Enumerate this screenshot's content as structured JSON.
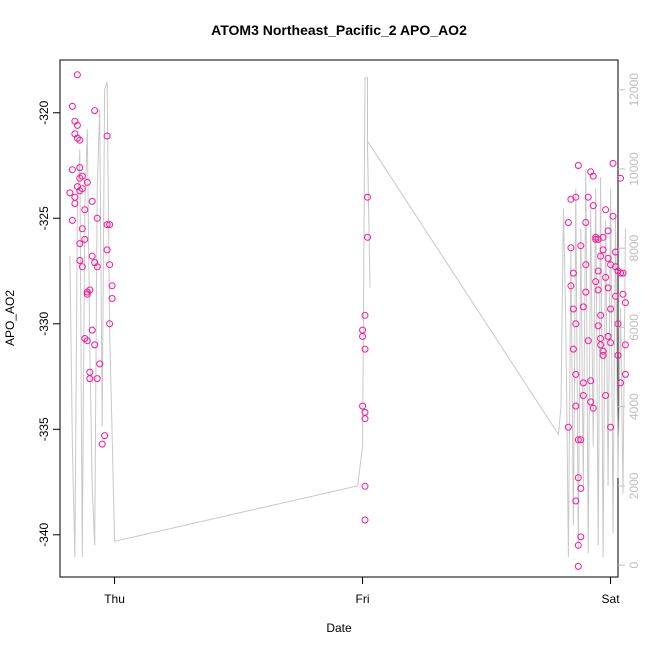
{
  "chart_data": {
    "type": "scatter",
    "title": "ATOM3 Northeast_Pacific_2 APO_AO2",
    "xlabel": "Date",
    "ylabel": "APO_AO2",
    "x_ticks": [
      "Thu",
      "Fri",
      "Sat"
    ],
    "x_tick_values": [
      1.0,
      2.0,
      3.0
    ],
    "xlim": [
      0.78,
      3.03
    ],
    "ylim": [
      -342.0,
      -317.5
    ],
    "y_ticks": [
      -340,
      -335,
      -330,
      -325,
      -320
    ],
    "y2_ticks": [
      0,
      2000,
      4000,
      6000,
      8000,
      10000,
      12000
    ],
    "y2lim": [
      -300,
      12750
    ],
    "colors": {
      "points": "#ff1493",
      "line": "#c8c8c8",
      "right_axis": "#bebebe"
    },
    "series": [
      {
        "kind": "points",
        "values": [
          [
            0.83,
            -319.7
          ],
          [
            0.85,
            -318.2
          ],
          [
            0.84,
            -321.0
          ],
          [
            0.86,
            -321.3
          ],
          [
            0.83,
            -322.7
          ],
          [
            0.87,
            -323.0
          ],
          [
            0.85,
            -323.5
          ],
          [
            0.82,
            -323.8
          ],
          [
            0.84,
            -324.3
          ],
          [
            0.88,
            -324.6
          ],
          [
            0.83,
            -325.1
          ],
          [
            0.86,
            -326.2
          ],
          [
            0.87,
            -327.3
          ],
          [
            0.89,
            -328.5
          ],
          [
            0.88,
            -330.7
          ],
          [
            0.9,
            -332.3
          ],
          [
            0.91,
            -330.3
          ],
          [
            0.92,
            -331.0
          ],
          [
            0.93,
            -332.6
          ],
          [
            0.94,
            -331.9
          ],
          [
            0.92,
            -319.9
          ],
          [
            0.91,
            -324.2
          ],
          [
            0.93,
            -325.0
          ],
          [
            0.95,
            -335.7
          ],
          [
            0.96,
            -335.3
          ],
          [
            0.97,
            -321.1
          ],
          [
            0.97,
            -325.3
          ],
          [
            0.98,
            -325.3
          ],
          [
            0.97,
            -326.5
          ],
          [
            0.98,
            -327.2
          ],
          [
            0.99,
            -328.2
          ],
          [
            0.99,
            -328.8
          ],
          [
            0.98,
            -330.0
          ],
          [
            0.84,
            -320.4
          ],
          [
            0.85,
            -320.6
          ],
          [
            0.85,
            -321.2
          ],
          [
            0.86,
            -322.6
          ],
          [
            0.86,
            -323.1
          ],
          [
            0.87,
            -323.6
          ],
          [
            0.89,
            -323.3
          ],
          [
            0.88,
            -326.0
          ],
          [
            0.86,
            -327.0
          ],
          [
            0.9,
            -328.4
          ],
          [
            0.89,
            -328.6
          ],
          [
            0.89,
            -330.8
          ],
          [
            0.9,
            -332.6
          ],
          [
            0.84,
            -324.0
          ],
          [
            0.86,
            -323.7
          ],
          [
            0.87,
            -325.5
          ],
          [
            0.91,
            -326.8
          ],
          [
            0.92,
            -327.1
          ],
          [
            0.93,
            -327.3
          ],
          [
            2.02,
            -324.0
          ],
          [
            2.02,
            -325.9
          ],
          [
            2.01,
            -329.6
          ],
          [
            2.0,
            -330.3
          ],
          [
            2.0,
            -330.6
          ],
          [
            2.01,
            -331.2
          ],
          [
            2.0,
            -333.9
          ],
          [
            2.01,
            -334.2
          ],
          [
            2.01,
            -334.5
          ],
          [
            2.01,
            -337.7
          ],
          [
            2.01,
            -339.3
          ],
          [
            2.83,
            -334.9
          ],
          [
            2.83,
            -325.2
          ],
          [
            2.84,
            -326.4
          ],
          [
            2.84,
            -324.1
          ],
          [
            2.85,
            -327.6
          ],
          [
            2.84,
            -328.2
          ],
          [
            2.85,
            -329.3
          ],
          [
            2.86,
            -330.0
          ],
          [
            2.85,
            -331.2
          ],
          [
            2.86,
            -332.4
          ],
          [
            2.86,
            -333.9
          ],
          [
            2.87,
            -335.5
          ],
          [
            2.87,
            -337.3
          ],
          [
            2.86,
            -338.4
          ],
          [
            2.87,
            -340.5
          ],
          [
            2.87,
            -341.5
          ],
          [
            2.88,
            -340.1
          ],
          [
            2.88,
            -337.8
          ],
          [
            2.88,
            -335.5
          ],
          [
            2.89,
            -333.4
          ],
          [
            2.89,
            -332.8
          ],
          [
            2.89,
            -329.2
          ],
          [
            2.9,
            -327.2
          ],
          [
            2.9,
            -325.2
          ],
          [
            2.91,
            -324.0
          ],
          [
            2.87,
            -322.5
          ],
          [
            2.86,
            -324.0
          ],
          [
            2.88,
            -326.3
          ],
          [
            2.9,
            -328.5
          ],
          [
            2.91,
            -330.8
          ],
          [
            2.92,
            -332.7
          ],
          [
            2.92,
            -333.7
          ],
          [
            2.93,
            -334.0
          ],
          [
            2.92,
            -322.8
          ],
          [
            2.93,
            -323.0
          ],
          [
            2.93,
            -324.4
          ],
          [
            2.94,
            -325.9
          ],
          [
            2.94,
            -326.0
          ],
          [
            2.95,
            -327.5
          ],
          [
            2.95,
            -328.4
          ],
          [
            2.96,
            -329.6
          ],
          [
            2.96,
            -330.7
          ],
          [
            2.97,
            -331.3
          ],
          [
            2.97,
            -331.5
          ],
          [
            2.98,
            -333.4
          ],
          [
            2.98,
            -324.6
          ],
          [
            2.99,
            -325.6
          ],
          [
            2.99,
            -326.9
          ],
          [
            3.0,
            -327.2
          ],
          [
            3.0,
            -329.3
          ],
          [
            2.99,
            -330.6
          ],
          [
            3.0,
            -330.9
          ],
          [
            3.01,
            -322.4
          ],
          [
            3.01,
            -324.9
          ],
          [
            3.02,
            -326.6
          ],
          [
            3.02,
            -328.7
          ],
          [
            3.03,
            -330.0
          ],
          [
            3.03,
            -331.5
          ],
          [
            3.04,
            -332.8
          ],
          [
            3.04,
            -323.1
          ],
          [
            3.05,
            -327.6
          ],
          [
            3.05,
            -328.6
          ],
          [
            3.06,
            -329.0
          ],
          [
            3.06,
            -331.0
          ],
          [
            3.06,
            -332.4
          ],
          [
            2.95,
            -326.0
          ],
          [
            2.96,
            -326.8
          ],
          [
            2.97,
            -326.5
          ],
          [
            2.97,
            -325.9
          ],
          [
            2.98,
            -327.8
          ],
          [
            2.99,
            -328.3
          ],
          [
            3.0,
            -334.9
          ],
          [
            2.94,
            -328.0
          ],
          [
            2.95,
            -330.1
          ],
          [
            2.96,
            -331.0
          ],
          [
            3.02,
            -327.3
          ],
          [
            3.03,
            -327.5
          ],
          [
            3.04,
            -327.6
          ]
        ]
      },
      {
        "kind": "line",
        "axis": "right",
        "values": [
          [
            0.82,
            7800
          ],
          [
            0.83,
            3000
          ],
          [
            0.84,
            200
          ],
          [
            0.85,
            9000
          ],
          [
            0.86,
            10500
          ],
          [
            0.87,
            200
          ],
          [
            0.88,
            9000
          ],
          [
            0.89,
            11000
          ],
          [
            0.9,
            5500
          ],
          [
            0.91,
            2000
          ],
          [
            0.92,
            500
          ],
          [
            0.93,
            9500
          ],
          [
            0.94,
            11500
          ],
          [
            0.95,
            3500
          ],
          [
            0.96,
            12000
          ],
          [
            0.97,
            12200
          ],
          [
            0.98,
            6000
          ],
          [
            1.0,
            600
          ],
          [
            1.98,
            2000
          ],
          [
            2.0,
            3000
          ],
          [
            2.01,
            12300
          ],
          [
            2.02,
            12300
          ],
          [
            2.02,
            10500
          ],
          [
            2.03,
            7000
          ],
          [
            2.02,
            10700
          ],
          [
            2.79,
            3300
          ],
          [
            2.8,
            4000
          ],
          [
            2.81,
            9000
          ],
          [
            2.82,
            6000
          ],
          [
            2.83,
            200
          ],
          [
            2.84,
            8000
          ],
          [
            2.85,
            1000
          ],
          [
            2.86,
            9500
          ],
          [
            2.87,
            400
          ],
          [
            2.88,
            8500
          ],
          [
            2.89,
            2000
          ],
          [
            2.9,
            10000
          ],
          [
            2.91,
            300
          ],
          [
            2.92,
            9000
          ],
          [
            2.93,
            3000
          ],
          [
            2.94,
            9500
          ],
          [
            2.95,
            500
          ],
          [
            2.96,
            9800
          ],
          [
            2.97,
            200
          ],
          [
            2.98,
            8700
          ],
          [
            2.99,
            2000
          ],
          [
            3.0,
            9500
          ],
          [
            3.01,
            800
          ],
          [
            3.02,
            8800
          ],
          [
            3.03,
            2200
          ],
          [
            3.04,
            6500
          ],
          [
            3.05,
            1800
          ],
          [
            3.06,
            8500
          ]
        ],
        "connector_overrides": [
          [
            1.0,
            600
          ],
          [
            2.78,
            3300
          ]
        ]
      }
    ]
  }
}
